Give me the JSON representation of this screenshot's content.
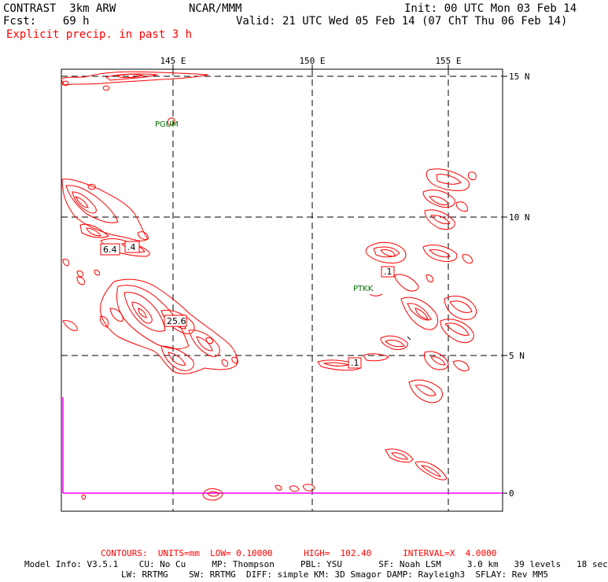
{
  "header": {
    "model": "CONTRAST  3km ARW",
    "forecast": "Fcst:    69 h",
    "field": "Explicit precip. in past 3 h",
    "org": "NCAR/MMM",
    "init": "Init: 00 UTC Mon 03 Feb 14",
    "valid": "Valid: 21 UTC Wed 05 Feb 14 (07 ChT Thu 06 Feb 14)"
  },
  "axes": {
    "lon_labels": [
      "145 E",
      "150 E",
      "155 E"
    ],
    "lat_labels": [
      "15 N",
      "10 N",
      "5 N",
      "0"
    ]
  },
  "stations": [
    {
      "name": "PGUM"
    },
    {
      "name": "PTKK"
    }
  ],
  "contour_labels": [
    "6.4",
    ".4",
    ".1",
    "25.6",
    ".1"
  ],
  "footer": {
    "contours": "CONTOURS:  UNITS=mm  LOW= 0.10000      HIGH=  102.40      INTERVAL=X  4.0000",
    "model_info_1": "Model Info: V3.5.1    CU: No Cu     MP: Thompson     PBL: YSU       SF: Noah LSM     3.0 km   39 levels   18 sec",
    "model_info_2": "LW: RRTMG    SW: RRTMG  DIFF: simple KM: 3D Smagor DAMP: Rayleigh3  SFLAY: Rev MM5"
  },
  "colors": {
    "contour": "#ff0000",
    "grid": "#000000",
    "station": "#007000",
    "boundary": "#ff00ff"
  }
}
